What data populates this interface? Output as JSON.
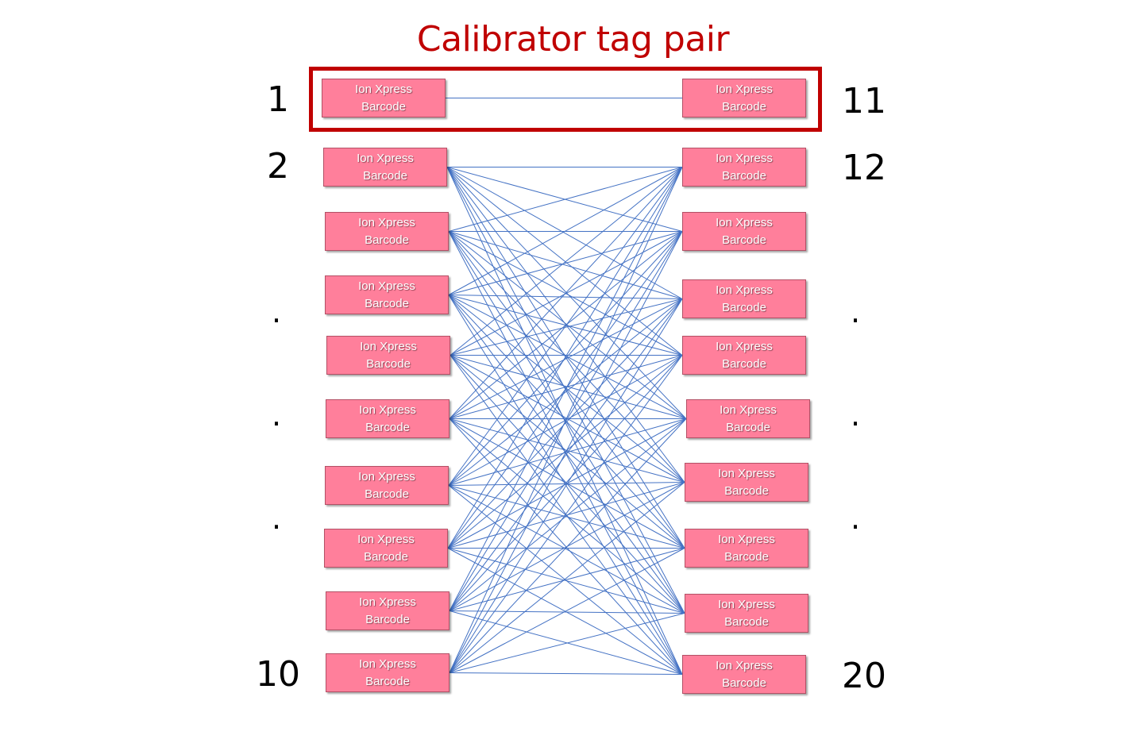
{
  "title": "Calibrator tag pair",
  "box_label_line1": "Ion Xpress",
  "box_label_line2": "Barcode",
  "left_labels": [
    "1",
    "2",
    "10"
  ],
  "right_labels": [
    "11",
    "12",
    "20"
  ],
  "ellipsis_dot": ".",
  "colors": {
    "title": "#c00000",
    "frame": "#c00000",
    "box_fill": "#ff7f9b",
    "box_border": "#b35065",
    "line": "#4472c4"
  }
}
